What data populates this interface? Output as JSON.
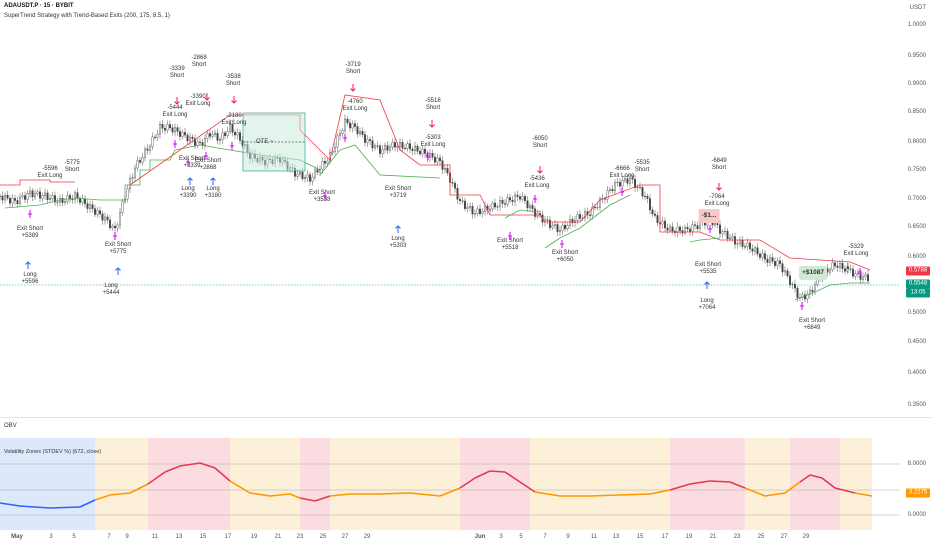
{
  "header": {
    "symbol": "ADAUSDT.P · 15 · BYBIT",
    "strategy": "SuperTrend Strategy with Trend-Based Exits (200, 175, 8.5, 1)",
    "currency": "USDT"
  },
  "price_axis": {
    "ticks": [
      "1.0000",
      "0.9500",
      "0.9000",
      "0.8500",
      "0.8000",
      "0.7500",
      "0.7000",
      "0.6500",
      "0.6000",
      "0.5500",
      "0.5000",
      "0.4500",
      "0.4000",
      "0.3500"
    ],
    "tag_red": "0.5788",
    "tag_green": "0.5548",
    "tag_green_sub": "13:05"
  },
  "trade_labels": [
    {
      "text": "Exit Short\n+5389",
      "pos": "below"
    },
    {
      "text": "Long\n+5596",
      "pos": "below"
    },
    {
      "text": "-5596\nExit Long",
      "pos": "above"
    },
    {
      "text": "-5775\nShort",
      "pos": "above"
    },
    {
      "text": "Exit Short\n+5775",
      "pos": "below"
    },
    {
      "text": "Long\n+5444",
      "pos": "below"
    },
    {
      "text": "-3339\nShort",
      "pos": "above"
    },
    {
      "text": "-5444\nExit Long",
      "pos": "above"
    },
    {
      "text": "-2868\nShort",
      "pos": "above"
    },
    {
      "text": "-3390\nExit Long",
      "pos": "above"
    },
    {
      "text": "Exit Short\n+3339",
      "pos": "below"
    },
    {
      "text": "Long\n+3390",
      "pos": "below"
    },
    {
      "text": "Exit Short\n+2868",
      "pos": "below"
    },
    {
      "text": "Long\n+3180",
      "pos": "below"
    },
    {
      "text": "-3538\nShort",
      "pos": "above"
    },
    {
      "text": "-3180\nExit Long",
      "pos": "above"
    },
    {
      "text": "Exit Short\n+3538",
      "pos": "below"
    },
    {
      "text": "-3719\nShort",
      "pos": "above"
    },
    {
      "text": "-4760\nExit Long",
      "pos": "above"
    },
    {
      "text": "Exit Short\n+3719",
      "pos": "below"
    },
    {
      "text": "Long\n+5303",
      "pos": "below"
    },
    {
      "text": "-5518\nShort",
      "pos": "above"
    },
    {
      "text": "-5303\nExit Long",
      "pos": "above"
    },
    {
      "text": "-6050\nShort",
      "pos": "above"
    },
    {
      "text": "-5436\nExit Long",
      "pos": "above"
    },
    {
      "text": "Exit Short\n+5518",
      "pos": "below"
    },
    {
      "text": "Exit Short\n+6050",
      "pos": "below"
    },
    {
      "text": "-6666\nExit Long",
      "pos": "above"
    },
    {
      "text": "-5535\nShort",
      "pos": "above"
    },
    {
      "text": "-6849\nShort",
      "pos": "above"
    },
    {
      "text": "-7064\nExit Long",
      "pos": "above"
    },
    {
      "text": "Exit Short\n+5535",
      "pos": "below"
    },
    {
      "text": "Long\n+7064",
      "pos": "below"
    },
    {
      "text": "-5329\nExit Long",
      "pos": "above"
    },
    {
      "text": "Exit Short\n+6849",
      "pos": "below"
    }
  ],
  "position_box": {
    "label": "OTE ~"
  },
  "badges": {
    "loss": "-$1...",
    "profit": "+$1087"
  },
  "indicator_labels": {
    "obv": "OBV",
    "volatility": "Volatility Zones (STDEV %) (672, close)",
    "ticks": [
      "8.0000",
      "0.0000"
    ],
    "tag": "3.2275"
  },
  "x_axis": [
    "May",
    "3",
    "5",
    "7",
    "9",
    "11",
    "13",
    "15",
    "17",
    "19",
    "21",
    "23",
    "25",
    "27",
    "29",
    "Jun",
    "3",
    "5",
    "7",
    "9",
    "11",
    "13",
    "15",
    "17",
    "19",
    "21",
    "23",
    "25",
    "27",
    "29"
  ],
  "colors": {
    "up_trend": "#4caf50",
    "down_trend": "#f23645",
    "zone_blue": "#dde8fb",
    "zone_orange": "#fdf0d8",
    "zone_red": "#fbdde1",
    "vol_line_low": "#2962ff",
    "vol_line_mid": "#ff9800",
    "vol_line_high": "#e53950",
    "tag_red": "#f23645",
    "tag_green": "#089981",
    "tag_orange": "#ff9800"
  }
}
